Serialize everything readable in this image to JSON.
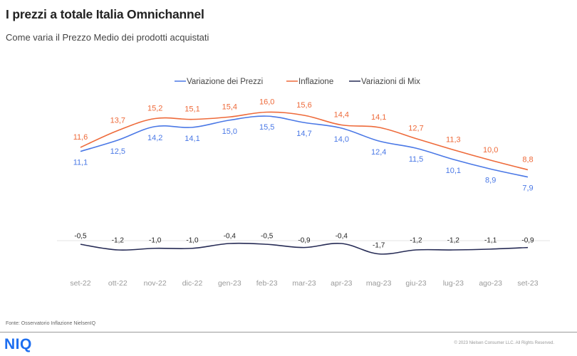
{
  "header": {
    "title": "I prezzi a totale Italia Omnichannel",
    "subtitle": "Come  varia il Prezzo  Medio dei prodotti acquistati"
  },
  "footer": {
    "source": "Fonte: Osservatorio Inflazione NielsenIQ",
    "logo": "NIQ",
    "copyright": "© 2023 Nielsen Consumer LLC. All Rights Reserved."
  },
  "chart_data": {
    "type": "line",
    "title": "I prezzi a totale Italia Omnichannel",
    "subtitle": "Come varia il Prezzo Medio dei prodotti acquistati",
    "xlabel": "",
    "ylabel": "",
    "categories": [
      "set-22",
      "ott-22",
      "nov-22",
      "dic-22",
      "gen-23",
      "feb-23",
      "mar-23",
      "apr-23",
      "mag-23",
      "giu-23",
      "lug-23",
      "ago-23",
      "set-23"
    ],
    "series": [
      {
        "name": "Variazione dei Prezzi",
        "color": "#4a78e6",
        "values": [
          11.1,
          12.5,
          14.2,
          14.1,
          15.0,
          15.5,
          14.7,
          14.0,
          12.4,
          11.5,
          10.1,
          8.9,
          7.9
        ],
        "labels": [
          "11,1",
          "12,5",
          "14,2",
          "14,1",
          "15,0",
          "15,5",
          "14,7",
          "14,0",
          "12,4",
          "11,5",
          "10,1",
          "8,9",
          "7,9"
        ]
      },
      {
        "name": "Inflazione",
        "color": "#ee6a3a",
        "values": [
          11.6,
          13.7,
          15.2,
          15.1,
          15.4,
          16.0,
          15.6,
          14.4,
          14.1,
          12.7,
          11.3,
          10.0,
          8.8
        ],
        "labels": [
          "11,6",
          "13,7",
          "15,2",
          "15,1",
          "15,4",
          "16,0",
          "15,6",
          "14,4",
          "14,1",
          "12,7",
          "11,3",
          "10,0",
          "8,8"
        ]
      },
      {
        "name": "Variazioni di Mix",
        "color": "#262b55",
        "values": [
          -0.5,
          -1.2,
          -1.0,
          -1.0,
          -0.4,
          -0.5,
          -0.9,
          -0.4,
          -1.7,
          -1.2,
          -1.2,
          -1.1,
          -0.9
        ],
        "labels": [
          "-0,5",
          "-1,2",
          "-1,0",
          "-1,0",
          "-0,4",
          "-0,5",
          "-0,9",
          "-0,4",
          "-1,7",
          "-1,2",
          "-1,2",
          "-1,1",
          "-0,9"
        ]
      }
    ],
    "legend": {
      "position": "top",
      "entries": [
        "Variazione dei Prezzi",
        "Inflazione",
        "Variazioni di Mix"
      ]
    },
    "grid": false,
    "zero_line": true,
    "smooth": true
  }
}
